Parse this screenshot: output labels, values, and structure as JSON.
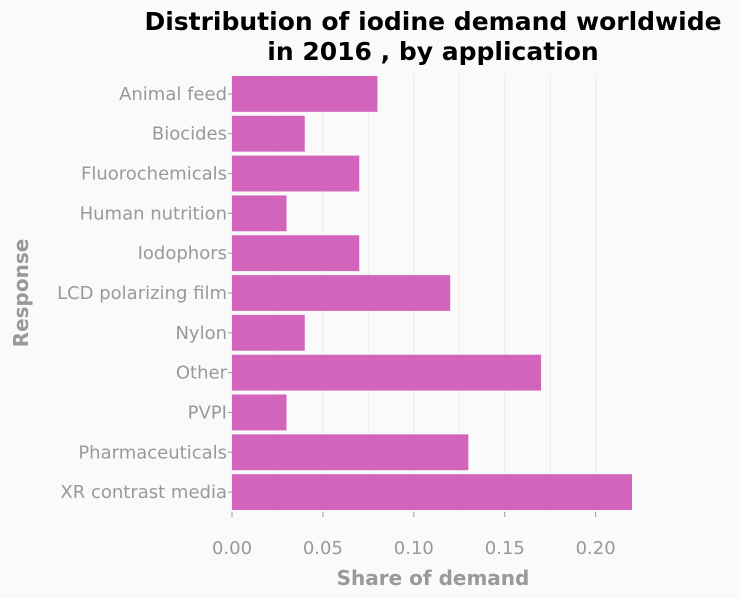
{
  "chart_data": {
    "type": "bar",
    "orientation": "horizontal",
    "title_line1": "Distribution of iodine demand worldwide",
    "title_line2": "in 2016 , by application",
    "xlabel": "Share of demand",
    "ylabel": "Response",
    "categories": [
      "Animal feed",
      "Biocides",
      "Fluorochemicals",
      "Human nutrition",
      "Iodophors",
      "LCD polarizing film",
      "Nylon",
      "Other",
      "PVPI",
      "Pharmaceuticals",
      "XR contrast media"
    ],
    "values": [
      0.08,
      0.04,
      0.07,
      0.03,
      0.07,
      0.12,
      0.04,
      0.17,
      0.03,
      0.13,
      0.22
    ],
    "xlim": [
      0,
      0.22
    ],
    "xticks": [
      0.0,
      0.05,
      0.1,
      0.15,
      0.2
    ],
    "xtick_labels": [
      "0.00",
      "0.05",
      "0.10",
      "0.15",
      "0.20"
    ],
    "grid": true,
    "legend": "none",
    "bar_color": "#d264bc"
  }
}
